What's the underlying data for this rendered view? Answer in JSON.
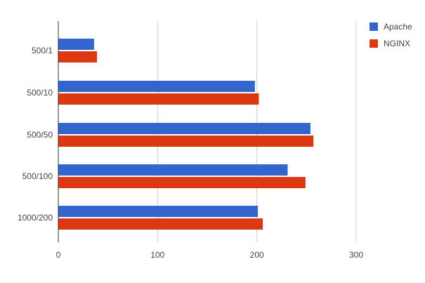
{
  "chart_data": {
    "type": "bar",
    "orientation": "horizontal",
    "categories": [
      "500/1",
      "500/10",
      "500/50",
      "500/100",
      "1000/200"
    ],
    "series": [
      {
        "name": "Apache",
        "color": "#3366cc",
        "values": [
          36,
          198,
          254,
          231,
          201
        ]
      },
      {
        "name": "NGINX",
        "color": "#dc3912",
        "values": [
          39,
          202,
          257,
          249,
          206
        ]
      }
    ],
    "x_ticks": [
      0,
      100,
      200,
      300
    ],
    "xlim": [
      0,
      300
    ],
    "title": "",
    "xlabel": "",
    "ylabel": "",
    "grid": true,
    "legend_position": "top-right"
  }
}
